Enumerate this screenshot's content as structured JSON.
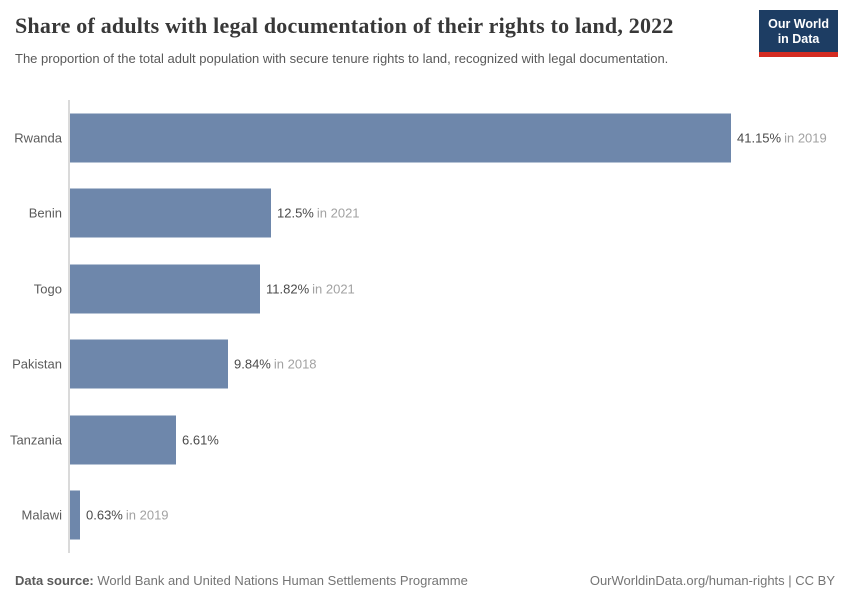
{
  "header": {
    "title": "Share of adults with legal documentation of their rights to land, 2022",
    "subtitle": "The proportion of the total adult population with secure tenure rights to land, recognized with legal documentation.",
    "logo": {
      "line1": "Our World",
      "line2": "in Data"
    }
  },
  "chart_data": {
    "type": "bar",
    "orientation": "horizontal",
    "title": "Share of adults with legal documentation of their rights to land, 2022",
    "categories": [
      "Rwanda",
      "Benin",
      "Togo",
      "Pakistan",
      "Tanzania",
      "Malawi"
    ],
    "values": [
      41.15,
      12.5,
      11.82,
      9.84,
      6.61,
      0.63
    ],
    "series": [
      {
        "country": "Rwanda",
        "value": 41.15,
        "value_label": "41.15%",
        "year_label": "in 2019"
      },
      {
        "country": "Benin",
        "value": 12.5,
        "value_label": "12.5%",
        "year_label": "in 2021"
      },
      {
        "country": "Togo",
        "value": 11.82,
        "value_label": "11.82%",
        "year_label": "in 2021"
      },
      {
        "country": "Pakistan",
        "value": 9.84,
        "value_label": "9.84%",
        "year_label": "in 2018"
      },
      {
        "country": "Tanzania",
        "value": 6.61,
        "value_label": "6.61%",
        "year_label": ""
      },
      {
        "country": "Malawi",
        "value": 0.63,
        "value_label": "0.63%",
        "year_label": "in 2019"
      }
    ],
    "xlim": [
      0,
      41.15
    ],
    "grid": false,
    "legend": "none",
    "bar_color": "#6e87ab"
  },
  "footer": {
    "source_label": "Data source:",
    "source_text": "World Bank and United Nations Human Settlements Programme",
    "credit": "OurWorldinData.org/human-rights | CC BY"
  },
  "colors": {
    "bar": "#6e87ab",
    "logo_navy": "#1d3d63",
    "logo_red": "#d42b21",
    "axis_line": "#dadada",
    "value_text": "#4a4a4a",
    "year_text": "#a2a2a2"
  }
}
